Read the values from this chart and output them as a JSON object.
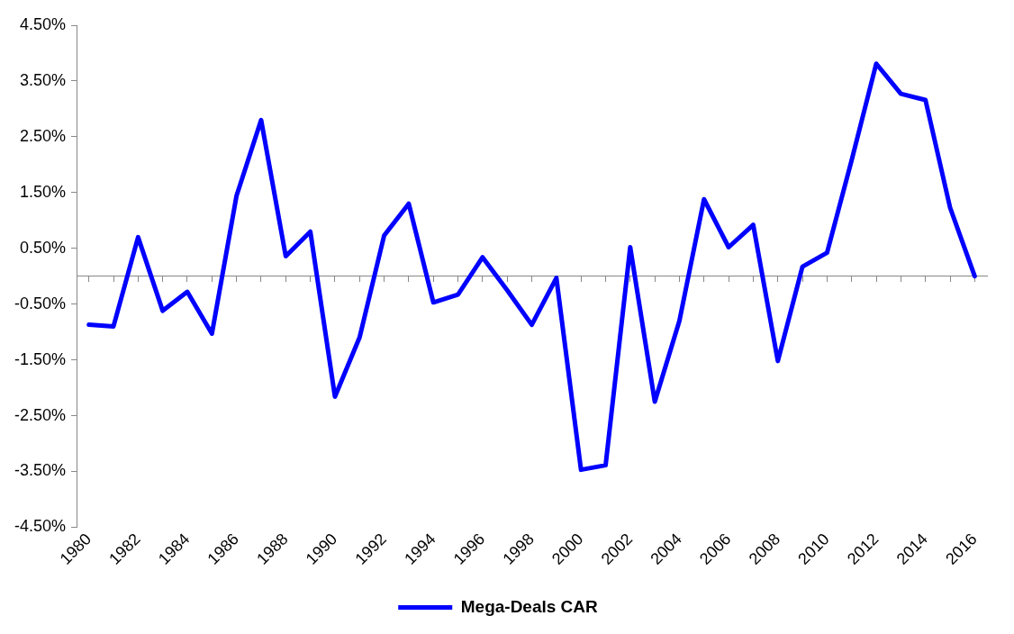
{
  "chart_data": {
    "type": "line",
    "categories": [
      "1980",
      null,
      "1982",
      null,
      "1984",
      null,
      "1986",
      null,
      "1988",
      null,
      "1990",
      null,
      "1992",
      null,
      "1994",
      null,
      "1996",
      null,
      "1998",
      null,
      "2000",
      null,
      "2002",
      null,
      "2004",
      null,
      "2006",
      null,
      "2008",
      null,
      "2010",
      null,
      "2012",
      null,
      "2014",
      null,
      "2016"
    ],
    "series": [
      {
        "name": "Mega-Deals CAR",
        "color": "#0000ff",
        "values": [
          -0.87,
          -0.9,
          0.7,
          -0.62,
          -0.28,
          -1.03,
          1.44,
          2.8,
          0.36,
          0.8,
          -2.16,
          -1.1,
          0.73,
          1.3,
          -0.47,
          -0.33,
          0.34,
          -0.25,
          -0.87,
          -0.03,
          -3.47,
          -3.39,
          0.52,
          -2.25,
          -0.8,
          1.38,
          0.52,
          0.92,
          -1.52,
          0.17,
          0.42,
          2.08,
          3.81,
          3.27,
          3.16,
          1.23,
          0.0
        ]
      }
    ],
    "ylim": [
      -4.5,
      4.5
    ],
    "yticks": [
      {
        "value": -4.5,
        "label": "-4.50%"
      },
      {
        "value": -3.5,
        "label": "-3.50%"
      },
      {
        "value": -2.5,
        "label": "-2.50%"
      },
      {
        "value": -1.5,
        "label": "-1.50%"
      },
      {
        "value": -0.5,
        "label": "-0.50%"
      },
      {
        "value": 0.5,
        "label": "0.50%"
      },
      {
        "value": 1.5,
        "label": "1.50%"
      },
      {
        "value": 2.5,
        "label": "2.50%"
      },
      {
        "value": 3.5,
        "label": "3.50%"
      },
      {
        "value": 4.5,
        "label": "4.50%"
      }
    ],
    "grid": false,
    "legend": "bottom",
    "marker": "none",
    "line_style": "solid"
  }
}
